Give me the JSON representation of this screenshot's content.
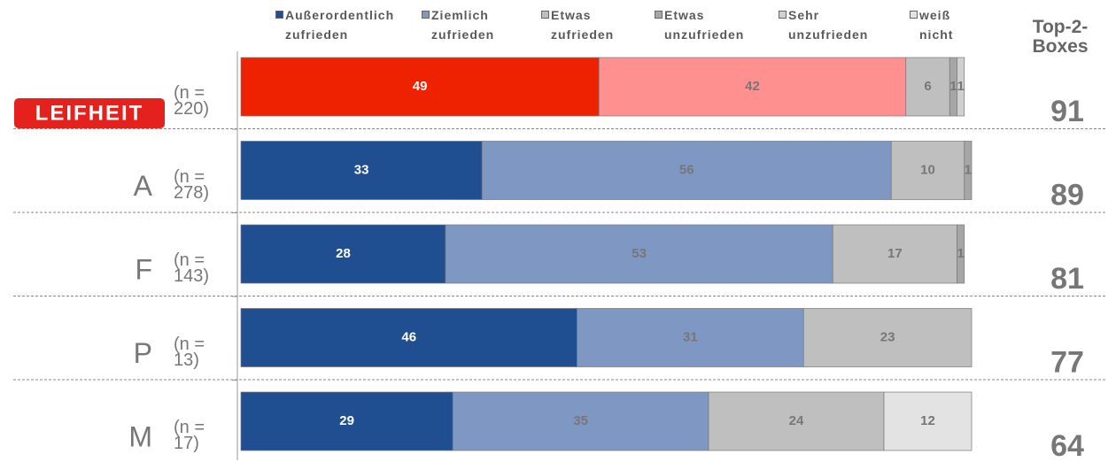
{
  "chart_data": {
    "type": "bar",
    "orientation": "horizontal",
    "stacked": true,
    "categories": [
      "LEIFHEIT",
      "A",
      "F",
      "P",
      "M"
    ],
    "sample_sizes": [
      "(n = 220)",
      "(n = 278)",
      "(n = 143)",
      "(n = 13)",
      "(n = 17)"
    ],
    "series": [
      {
        "name": "Außerordentlich zufrieden",
        "color": "#1f4e91",
        "label_color": "#ffffff",
        "values": [
          49,
          33,
          28,
          46,
          29
        ]
      },
      {
        "name": "Ziemlich zufrieden",
        "color": "#7f97c3",
        "label_color": "#777777",
        "values": [
          42,
          56,
          53,
          31,
          35
        ]
      },
      {
        "name": "Etwas zufrieden",
        "color": "#bfbfbf",
        "label_color": "#777777",
        "values": [
          6,
          10,
          17,
          23,
          24
        ]
      },
      {
        "name": "Etwas unzufrieden",
        "color": "#a6a6a6",
        "label_color": "#777777",
        "values": [
          1,
          1,
          1,
          null,
          null
        ]
      },
      {
        "name": "Sehr unzufrieden",
        "color": "#d0d0d0",
        "label_color": "#777777",
        "values": [
          1,
          null,
          null,
          null,
          null
        ]
      },
      {
        "name": "weiß nicht",
        "color": "#e3e3e3",
        "label_color": "#777777",
        "values": [
          null,
          null,
          null,
          null,
          12
        ]
      }
    ],
    "highlight": {
      "category": 0,
      "colors": [
        "#ee2200",
        "#ff9090"
      ]
    },
    "top2_title": "Top-2-Boxes",
    "top2_values": [
      91,
      89,
      81,
      77,
      64
    ],
    "xlim": [
      0,
      100
    ]
  }
}
